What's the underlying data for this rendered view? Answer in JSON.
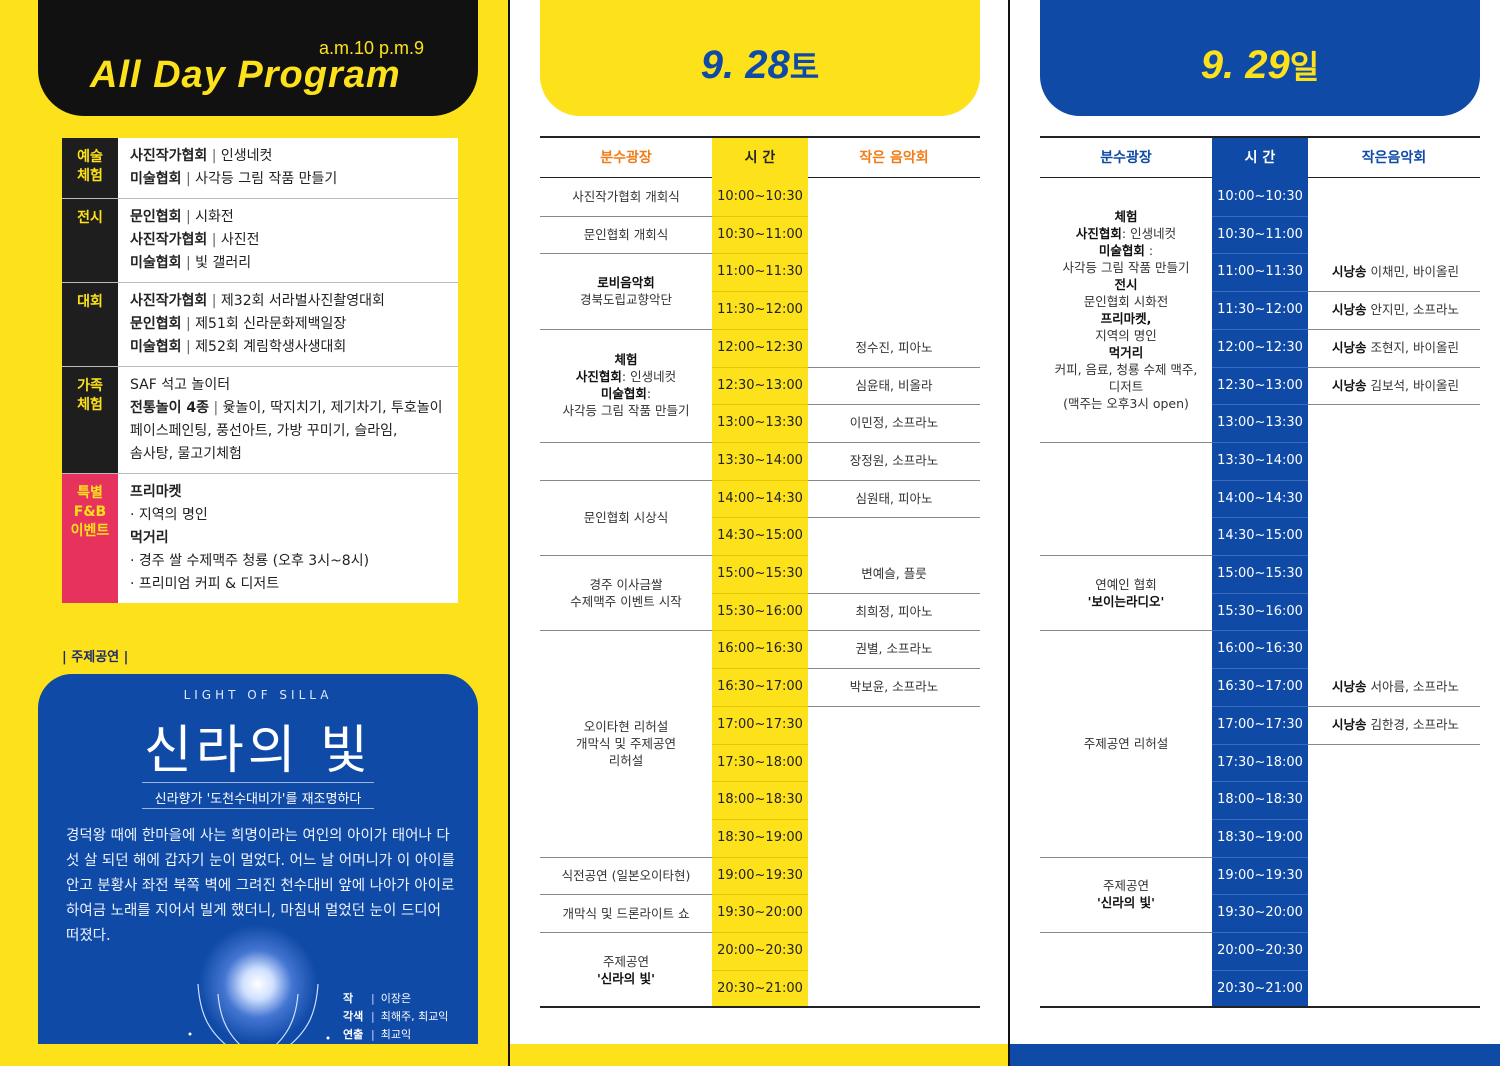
{
  "program": {
    "hours": "a.m.10 p.m.9",
    "title": "All Day Program",
    "categories": [
      {
        "label": "예술\n체험",
        "lines": [
          {
            "bold": "사진작가협회",
            "text": "인생네컷"
          },
          {
            "bold": "미술협회",
            "text": "사각등 그림 작품 만들기"
          }
        ]
      },
      {
        "label": "전시",
        "lines": [
          {
            "bold": "문인협회",
            "text": "시화전"
          },
          {
            "bold": "사진작가협회",
            "text": "사진전"
          },
          {
            "bold": "미술협회",
            "text": "빛 갤러리"
          }
        ]
      },
      {
        "label": "대회",
        "lines": [
          {
            "bold": "사진작가협회",
            "text": "제32회 서라벌사진촬영대회"
          },
          {
            "bold": "문인협회",
            "text": "제51회 신라문화제백일장"
          },
          {
            "bold": "미술협회",
            "text": "제52회 계림학생사생대회"
          }
        ]
      },
      {
        "label": "가족\n체험",
        "lines": [
          {
            "bold": "",
            "text": "SAF 석고 놀이터"
          },
          {
            "bold": "전통놀이 4종",
            "text": "윷놀이, 딱지치기, 제기차기, 투호놀이"
          },
          {
            "bold": "",
            "text": "페이스페인팅, 풍선아트, 가방 꾸미기, 슬라임,"
          },
          {
            "bold": "",
            "text": "솜사탕, 물고기체험"
          }
        ]
      },
      {
        "label": "특별\nF&B\n이벤트",
        "lines": [
          {
            "bold": "프리마켓",
            "text": ""
          },
          {
            "bold": "",
            "text": "· 지역의 명인"
          },
          {
            "bold": "먹거리",
            "text": ""
          },
          {
            "bold": "",
            "text": "· 경주 쌀 수제맥주 청룡 (오후 3시~8시)"
          },
          {
            "bold": "",
            "text": "· 프리미엄 커피 & 디저트"
          }
        ]
      }
    ]
  },
  "theme": {
    "section_label": "| 주제공연 |",
    "title_en": "LIGHT OF SILLA",
    "title_kr": "신라의 빛",
    "subtitle": "신라향가 '도천수대비가'를 재조명하다",
    "description": "경덕왕 때에 한마을에 사는 희명이라는 여인의 아이가 태어나 다섯 살 되던 해에 갑자기 눈이 멀었다. 어느 날 어머니가 이 아이를 안고 분황사 좌전 북쪽 벽에 그려진 천수대비 앞에 나아가 아이로 하여금 노래를 지어서 빌게 했더니, 마침내 멀었던 눈이 드디어 떠졌다.",
    "credits": [
      {
        "role": "작",
        "name": "이장은"
      },
      {
        "role": "각색",
        "name": "최해주, 최교익"
      },
      {
        "role": "연출",
        "name": "최교익"
      }
    ]
  },
  "times": [
    "10:00~10:30",
    "10:30~11:00",
    "11:00~11:30",
    "11:30~12:00",
    "12:00~12:30",
    "12:30~13:00",
    "13:00~13:30",
    "13:30~14:00",
    "14:00~14:30",
    "14:30~15:00",
    "15:00~15:30",
    "15:30~16:00",
    "16:00~16:30",
    "16:30~17:00",
    "17:00~17:30",
    "17:30~18:00",
    "18:00~18:30",
    "18:30~19:00",
    "19:00~19:30",
    "19:30~20:00",
    "20:00~20:30",
    "20:30~21:00"
  ],
  "day1": {
    "date": "9. 28",
    "dow": "토",
    "headers": {
      "left": "분수광장",
      "mid": "시 간",
      "right": "작은 음악회"
    },
    "left": [
      {
        "start": 0,
        "span": 1,
        "lines": [
          {
            "t": "사진작가협회 개회식"
          }
        ]
      },
      {
        "start": 1,
        "span": 1,
        "lines": [
          {
            "t": "문인협회 개회식"
          }
        ]
      },
      {
        "start": 2,
        "span": 2,
        "lines": [
          {
            "b": "로비음악회"
          },
          {
            "t": "경북도립교향악단"
          }
        ]
      },
      {
        "start": 4,
        "span": 3,
        "lines": [
          {
            "b": "체험"
          },
          {
            "b": "사진협회",
            "t": ": 인생네컷"
          },
          {
            "b": "미술협회",
            "t": ":"
          },
          {
            "t": "사각등 그림 작품 만들기"
          }
        ]
      },
      {
        "start": 7,
        "span": 1,
        "lines": []
      },
      {
        "start": 8,
        "span": 2,
        "lines": [
          {
            "t": "문인협회 시상식"
          }
        ]
      },
      {
        "start": 10,
        "span": 2,
        "lines": [
          {
            "t": "경주 이사금쌀"
          },
          {
            "t": "수제맥주 이벤트 시작"
          }
        ]
      },
      {
        "start": 12,
        "span": 6,
        "lines": [
          {
            "t": "오이타현 리허설"
          },
          {
            "t": "개막식 및 주제공연"
          },
          {
            "t": "리허설"
          }
        ]
      },
      {
        "start": 18,
        "span": 1,
        "lines": [
          {
            "t": "식전공연 (일본오이타현)"
          }
        ]
      },
      {
        "start": 19,
        "span": 1,
        "lines": [
          {
            "t": "개막식 및 드론라이트 쇼"
          }
        ]
      },
      {
        "start": 20,
        "span": 2,
        "lines": [
          {
            "t": "주제공연"
          },
          {
            "b": "'신라의 빛'"
          }
        ]
      }
    ],
    "right": [
      {
        "row": 4,
        "text": "정수진, 피아노"
      },
      {
        "row": 5,
        "text": "심윤태, 비올라"
      },
      {
        "row": 6,
        "text": "이민정, 소프라노"
      },
      {
        "row": 7,
        "text": "장정원, 소프라노"
      },
      {
        "row": 8,
        "text": "심원태, 피아노"
      },
      {
        "row": 10,
        "text": "변예슬, 플룻"
      },
      {
        "row": 11,
        "text": "최희정, 피아노"
      },
      {
        "row": 12,
        "text": "권별, 소프라노"
      },
      {
        "row": 13,
        "text": "박보윤, 소프라노"
      }
    ]
  },
  "day2": {
    "date": "9. 29",
    "dow": "일",
    "headers": {
      "left": "분수광장",
      "mid": "시 간",
      "right": "작은음악회"
    },
    "left": [
      {
        "start": 0,
        "span": 7,
        "lines": [
          {
            "b": "체험"
          },
          {
            "b": "사진협회",
            "t": ": 인생네컷"
          },
          {
            "b": "미술협회",
            "t": " :"
          },
          {
            "t": "사각등 그림 작품 만들기"
          },
          {
            "t": " "
          },
          {
            "b": "전시"
          },
          {
            "t": "문인협회 시화전"
          },
          {
            "t": " "
          },
          {
            "b": "프리마켓,"
          },
          {
            "t": "지역의 명인"
          },
          {
            "t": " "
          },
          {
            "b": "먹거리"
          },
          {
            "t": "커피, 음료, 청룡 수제 맥주,"
          },
          {
            "t": "디저트"
          },
          {
            "t": "(맥주는 오후3시 open)"
          }
        ]
      },
      {
        "start": 7,
        "span": 3,
        "lines": []
      },
      {
        "start": 10,
        "span": 2,
        "lines": [
          {
            "t": "연예인 협회"
          },
          {
            "b": "'보이는라디오'"
          }
        ]
      },
      {
        "start": 12,
        "span": 6,
        "lines": [
          {
            "t": "주제공연 리허설"
          }
        ]
      },
      {
        "start": 18,
        "span": 2,
        "lines": [
          {
            "t": "주제공연"
          },
          {
            "b": "'신라의 빛'"
          }
        ]
      },
      {
        "start": 20,
        "span": 2,
        "lines": []
      }
    ],
    "right": [
      {
        "row": 2,
        "bold": "시낭송",
        "text": "이채민, 바이올린"
      },
      {
        "row": 3,
        "bold": "시낭송",
        "text": "안지민, 소프라노"
      },
      {
        "row": 4,
        "bold": "시낭송",
        "text": "조현지, 바이올린"
      },
      {
        "row": 5,
        "bold": "시낭송",
        "text": "김보석, 바이올린"
      },
      {
        "row": 13,
        "bold": "시낭송",
        "text": "서아름, 소프라노"
      },
      {
        "row": 14,
        "bold": "시낭송",
        "text": "김한경, 소프라노"
      }
    ]
  },
  "colors": {
    "yellow": "#fde21b",
    "blue": "#0f4aa6",
    "black": "#111111",
    "pink": "#e8325e",
    "orange": "#f07d18"
  }
}
